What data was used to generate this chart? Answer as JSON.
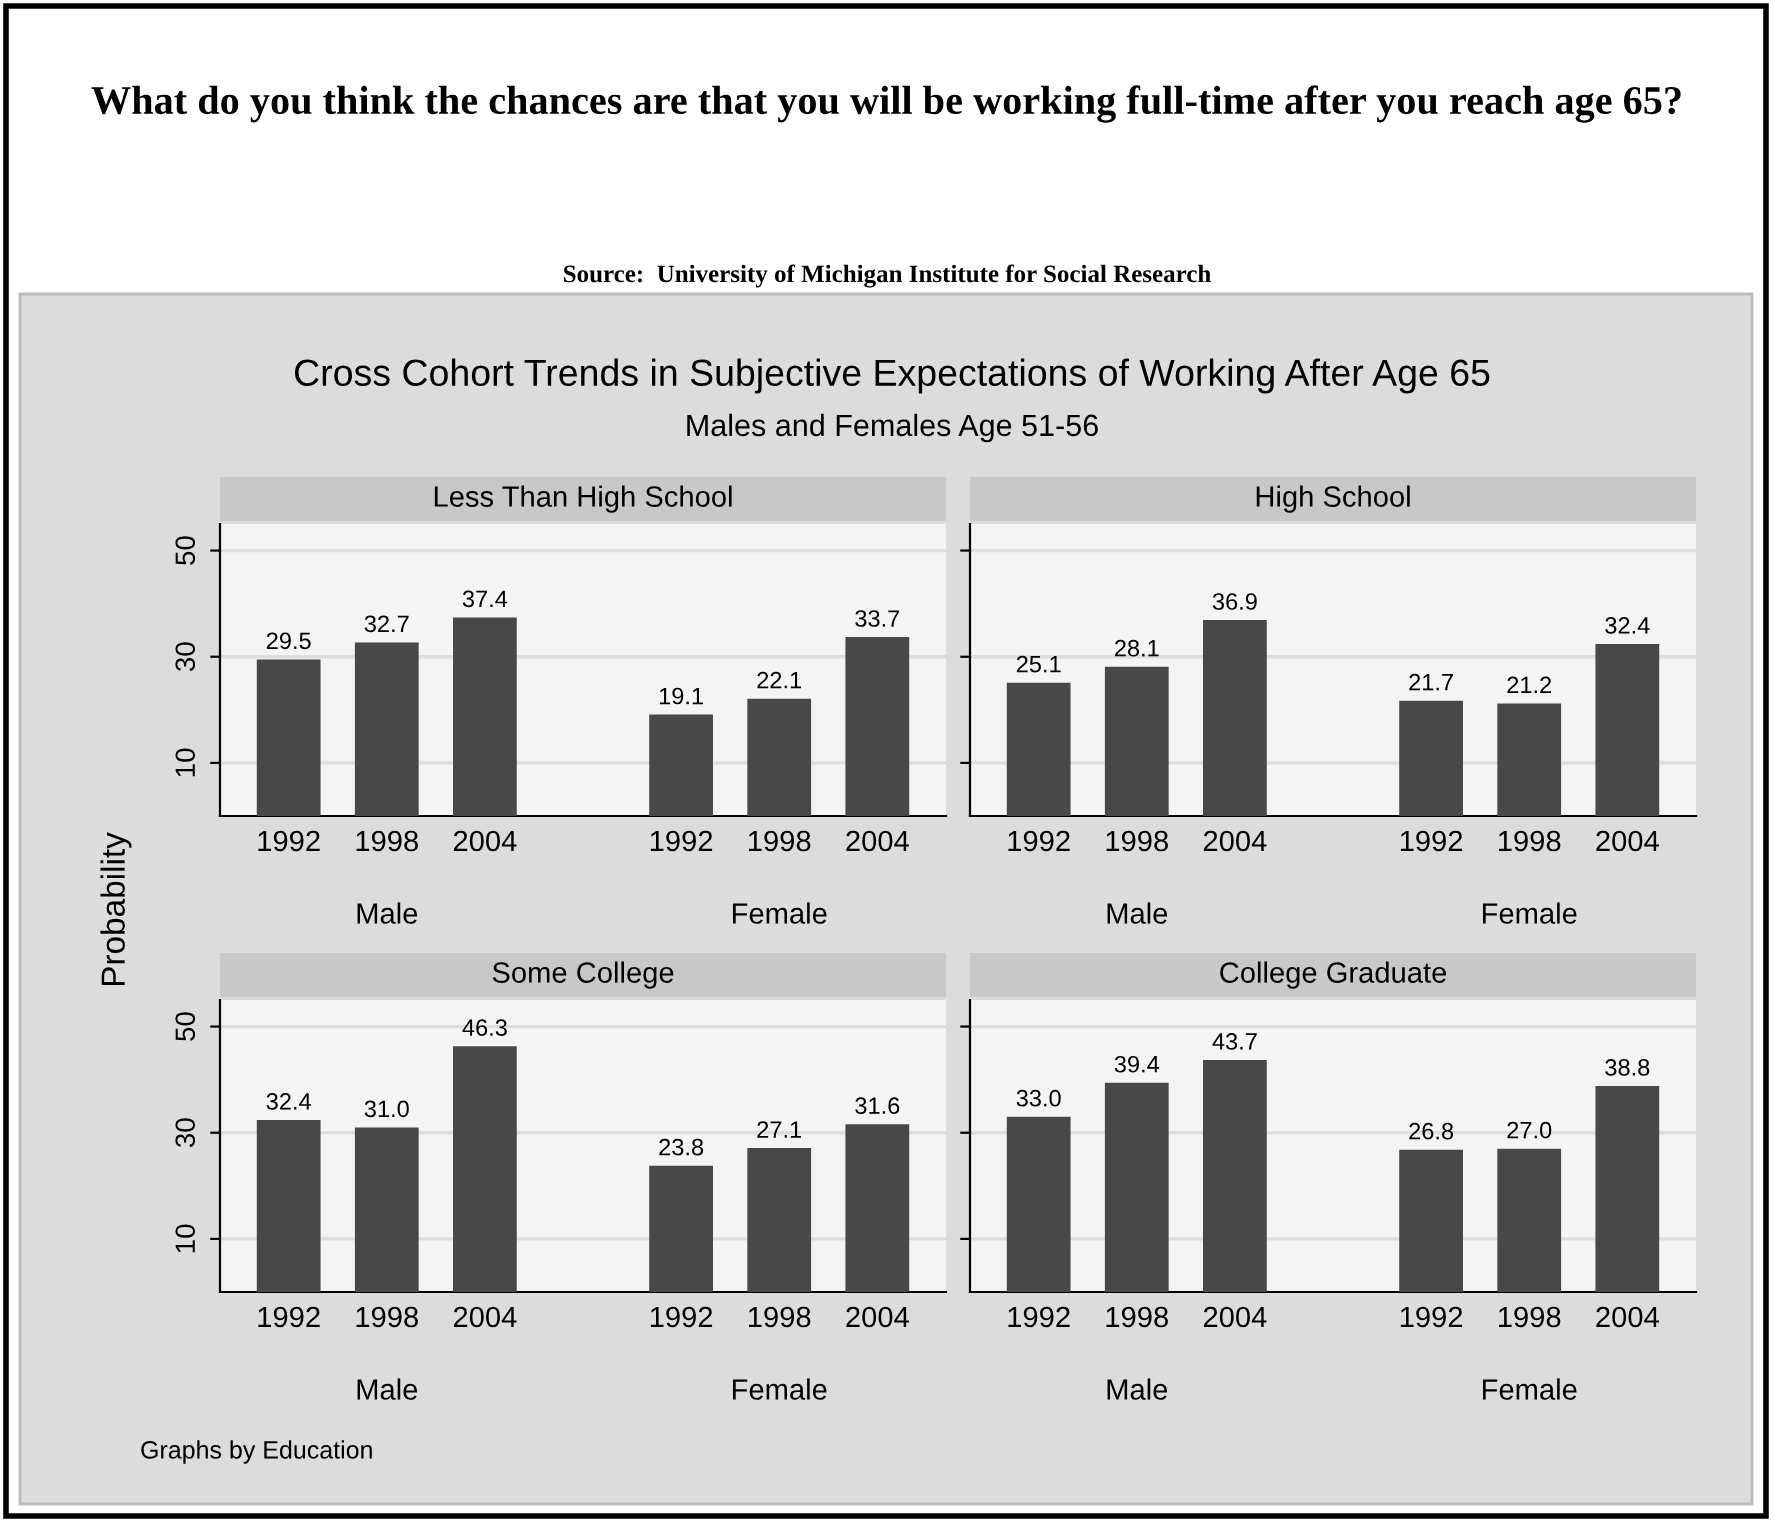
{
  "chart_data": [
    {
      "type": "other",
      "title": "What do you think the chances are that you will be working full-time after you reach age 65?",
      "subtitle": "Source:  University of Michigan Institute for Social Research",
      "annotations": [
        "Cross Cohort Trends in Subjective Expectations of Working After Age 65",
        "Males and Females Age 51-56",
        "Graphs by Education"
      ],
      "ylabel": "Probability"
    },
    {
      "type": "bar",
      "title": "Less Than High School",
      "categories": [
        "1992",
        "1998",
        "2004",
        null,
        "1992",
        "1998",
        "2004"
      ],
      "values": [
        29.5,
        32.7,
        37.4,
        null,
        19.1,
        22.1,
        33.7
      ],
      "value_labels": [
        "29.5",
        "32.7",
        "37.4",
        null,
        "19.1",
        "22.1",
        "33.7"
      ],
      "color": "#484848",
      "ylim": [
        0,
        55
      ],
      "yticks": [
        10,
        30,
        50
      ],
      "grid": "y",
      "annotations": [
        "Male",
        "Female"
      ]
    },
    {
      "type": "bar",
      "title": "High School",
      "categories": [
        "1992",
        "1998",
        "2004",
        null,
        "1992",
        "1998",
        "2004"
      ],
      "values": [
        25.1,
        28.1,
        36.9,
        null,
        21.7,
        21.2,
        32.4
      ],
      "value_labels": [
        "25.1",
        "28.1",
        "36.9",
        null,
        "21.7",
        "21.2",
        "32.4"
      ],
      "color": "#484848",
      "ylim": [
        0,
        55
      ],
      "yticks": [
        10,
        30,
        50
      ],
      "grid": "y",
      "tick_labels": "x",
      "annotations": [
        "Male",
        "Female"
      ]
    },
    {
      "type": "bar",
      "title": "Some College",
      "categories": [
        "1992",
        "1998",
        "2004",
        null,
        "1992",
        "1998",
        "2004"
      ],
      "values": [
        32.4,
        31.0,
        46.3,
        null,
        23.8,
        27.1,
        31.6
      ],
      "value_labels": [
        "32.4",
        "31.0",
        "46.3",
        null,
        "23.8",
        "27.1",
        "31.6"
      ],
      "color": "#484848",
      "ylim": [
        0,
        55
      ],
      "yticks": [
        10,
        30,
        50
      ],
      "grid": "y",
      "annotations": [
        "Male",
        "Female"
      ]
    },
    {
      "type": "bar",
      "title": "College Graduate",
      "categories": [
        "1992",
        "1998",
        "2004",
        null,
        "1992",
        "1998",
        "2004"
      ],
      "values": [
        33.0,
        39.4,
        43.7,
        null,
        26.8,
        27.0,
        38.8
      ],
      "value_labels": [
        "33.0",
        "39.4",
        "43.7",
        null,
        "26.8",
        "27.0",
        "38.8"
      ],
      "color": "#484848",
      "ylim": [
        0,
        55
      ],
      "yticks": [
        10,
        30,
        50
      ],
      "grid": "y",
      "tick_labels": "x",
      "annotations": [
        "Male",
        "Female"
      ]
    }
  ]
}
